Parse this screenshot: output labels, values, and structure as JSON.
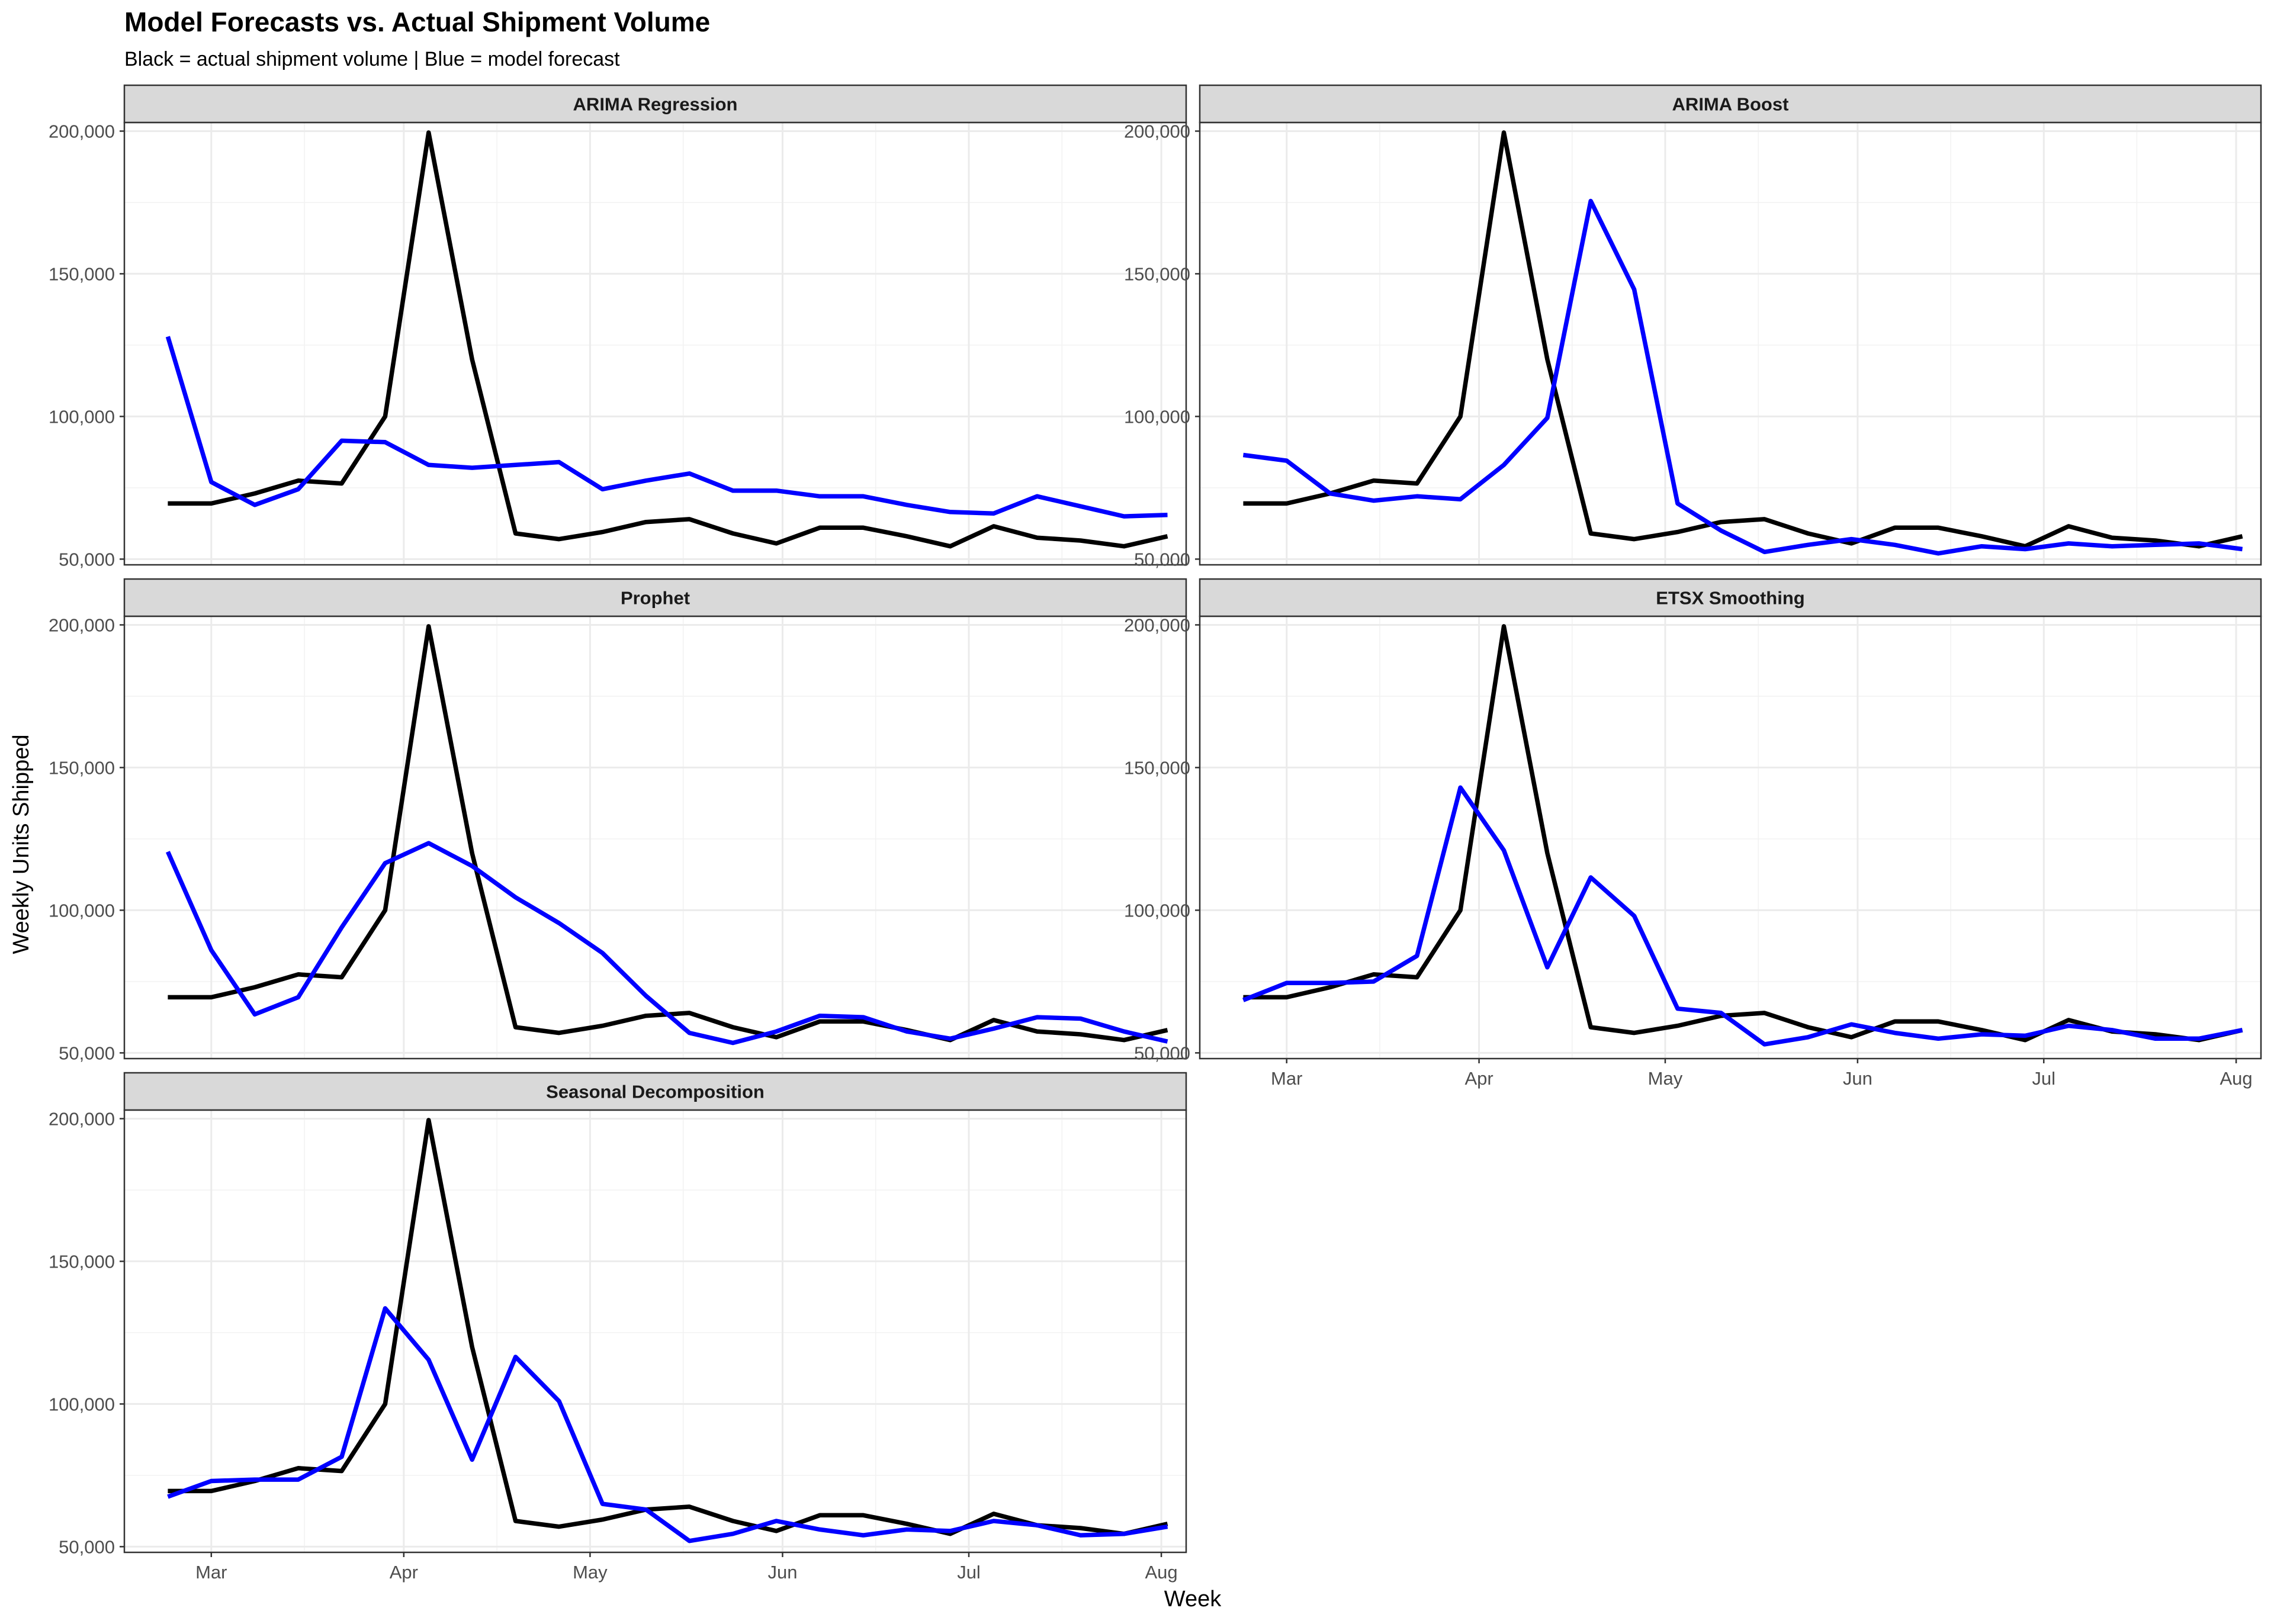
{
  "chart_data": {
    "type": "line",
    "title": "Model Forecasts vs. Actual Shipment Volume",
    "subtitle": "Black = actual shipment volume | Blue = model forecast",
    "xlabel": "Week",
    "ylabel": "Weekly Units Shipped",
    "grid": true,
    "x_ticks": [
      "Mar",
      "Apr",
      "May",
      "Jun",
      "Jul",
      "Aug"
    ],
    "y_ticks": [
      "50,000",
      "100,000",
      "150,000",
      "200,000"
    ],
    "y_tick_values": [
      50000,
      100000,
      150000,
      200000
    ],
    "ylim": [
      48000,
      203000
    ],
    "xlim": [
      "2024-02-16",
      "2024-08-05"
    ],
    "x": [
      "2024-02-23",
      "2024-03-01",
      "2024-03-08",
      "2024-03-15",
      "2024-03-22",
      "2024-03-29",
      "2024-04-05",
      "2024-04-12",
      "2024-04-19",
      "2024-04-26",
      "2024-05-03",
      "2024-05-10",
      "2024-05-17",
      "2024-05-24",
      "2024-05-31",
      "2024-06-07",
      "2024-06-14",
      "2024-06-21",
      "2024-06-28",
      "2024-07-05",
      "2024-07-12",
      "2024-07-19",
      "2024-07-26",
      "2024-08-02"
    ],
    "colors": {
      "actual": "#000000",
      "forecast": "#0000ff",
      "strip": "#d9d9d9",
      "grid": "#ebebeb"
    },
    "actual": [
      69500,
      69500,
      73000,
      77500,
      76500,
      100000,
      199500,
      120000,
      59000,
      57000,
      59500,
      63000,
      64000,
      59000,
      55500,
      61000,
      61000,
      58000,
      54500,
      61500,
      57500,
      56500,
      54500,
      58000
    ],
    "panels": [
      {
        "name": "ARIMA Regression",
        "forecast": [
          128000,
          77000,
          69000,
          74500,
          91500,
          91000,
          83000,
          82000,
          83000,
          84000,
          74500,
          77500,
          80000,
          74000,
          74000,
          72000,
          72000,
          69000,
          66500,
          66000,
          72000,
          68500,
          65000,
          65500
        ]
      },
      {
        "name": "ARIMA Boost",
        "forecast": [
          86500,
          84500,
          73000,
          70500,
          72000,
          71000,
          83000,
          99500,
          175500,
          144500,
          69500,
          60000,
          52500,
          55000,
          57000,
          55000,
          52000,
          54500,
          53500,
          55500,
          54500,
          55000,
          55500,
          53500
        ]
      },
      {
        "name": "Prophet",
        "forecast": [
          120500,
          86000,
          63500,
          69500,
          94000,
          116500,
          123500,
          115500,
          104500,
          95500,
          85000,
          70000,
          57000,
          53500,
          57500,
          63000,
          62500,
          57500,
          55000,
          58500,
          62500,
          62000,
          57500,
          54000
        ]
      },
      {
        "name": "ETSX Smoothing",
        "forecast": [
          68500,
          74500,
          74500,
          75000,
          84000,
          143000,
          121000,
          80000,
          111500,
          98000,
          65500,
          64000,
          53000,
          55500,
          60000,
          57000,
          55000,
          56500,
          56000,
          59500,
          58000,
          55000,
          55000,
          58000
        ]
      },
      {
        "name": "Seasonal Decomposition",
        "forecast": [
          67500,
          73000,
          73500,
          73500,
          81500,
          133500,
          115500,
          80500,
          116500,
          101000,
          65000,
          63000,
          52000,
          54500,
          59000,
          56000,
          54000,
          56000,
          55500,
          59000,
          57500,
          54000,
          54500,
          57000
        ]
      }
    ]
  }
}
